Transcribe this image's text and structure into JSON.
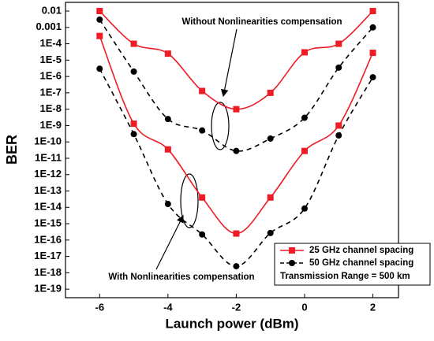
{
  "chart_data": {
    "type": "line",
    "x_label": "Launch power (dBm)",
    "y_label": "BER",
    "log_y": true,
    "x": [
      -6,
      -5,
      -4,
      -3,
      -2,
      -1,
      0,
      1,
      2
    ],
    "series": [
      {
        "name": "25 GHz channel spacing",
        "color": "#ee1c25",
        "marker": "square",
        "dash": false,
        "values": [
          [
            0.01,
            0.0001,
            2.5e-05,
            1.3e-07,
            1e-08,
            1e-07,
            3e-05,
            0.0001,
            0.01
          ],
          [
            0.0003,
            1.3e-09,
            3.5e-11,
            4e-14,
            2.5e-16,
            4e-14,
            2.8e-11,
            1e-09,
            2.8e-05
          ]
        ]
      },
      {
        "name": "50 GHz channel spacing",
        "color": "#000000",
        "marker": "circle",
        "dash": true,
        "values": [
          [
            0.003,
            2e-06,
            2.5e-09,
            5e-10,
            2.8e-11,
            1.6e-10,
            3e-09,
            3.5e-06,
            0.001
          ],
          [
            3e-06,
            3e-10,
            1.6e-14,
            2.2e-16,
            2.5e-18,
            2.7e-16,
            8.5e-15,
            2.5e-10,
            9e-07
          ]
        ]
      }
    ],
    "xlim": [
      -7,
      2.75
    ],
    "xticks": [
      -6,
      -4,
      -2,
      0,
      2
    ],
    "ylim": [
      3e-20,
      0.034
    ],
    "yticks": [
      0.01,
      0.001,
      {
        "value": 0.0001,
        "label": "1E-4"
      },
      {
        "value": 1e-05,
        "label": "1E-5"
      },
      {
        "value": 1e-06,
        "label": "1E-6"
      },
      {
        "value": 1e-07,
        "label": "1E-7"
      },
      {
        "value": 1e-08,
        "label": "1E-8"
      },
      {
        "value": 1e-09,
        "label": "1E-9"
      },
      {
        "value": 1e-10,
        "label": "1E-10"
      },
      {
        "value": 1e-11,
        "label": "1E-11"
      },
      {
        "value": 1e-12,
        "label": "1E-12"
      },
      {
        "value": 1e-13,
        "label": "1E-13"
      },
      {
        "value": 1e-14,
        "label": "1E-14"
      },
      {
        "value": 1e-15,
        "label": "1E-15"
      },
      {
        "value": 1e-16,
        "label": "1E-16"
      },
      {
        "value": 1e-17,
        "label": "1E-17"
      },
      {
        "value": 1e-18,
        "label": "1E-18"
      },
      {
        "value": 1e-19,
        "label": "1E-19"
      }
    ],
    "legend": "lower right",
    "legend_note": "Transmission Range = 500 km",
    "annotations": [
      "Without Nonlinearities compensation",
      "With Nonlinearities compensation"
    ]
  }
}
